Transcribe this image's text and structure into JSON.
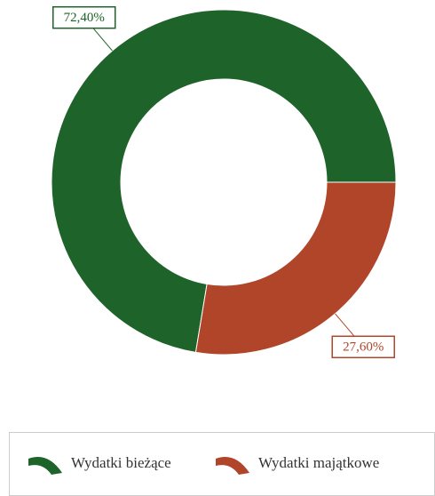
{
  "chart_data": {
    "type": "donut",
    "categories": [
      "Wydatki bieżące",
      "Wydatki majątkowe"
    ],
    "values": [
      72.4,
      27.6
    ],
    "value_labels": [
      "72,40%",
      "27,60%"
    ],
    "colors": [
      "#1e6329",
      "#b0452a"
    ],
    "legend": "bottom"
  }
}
